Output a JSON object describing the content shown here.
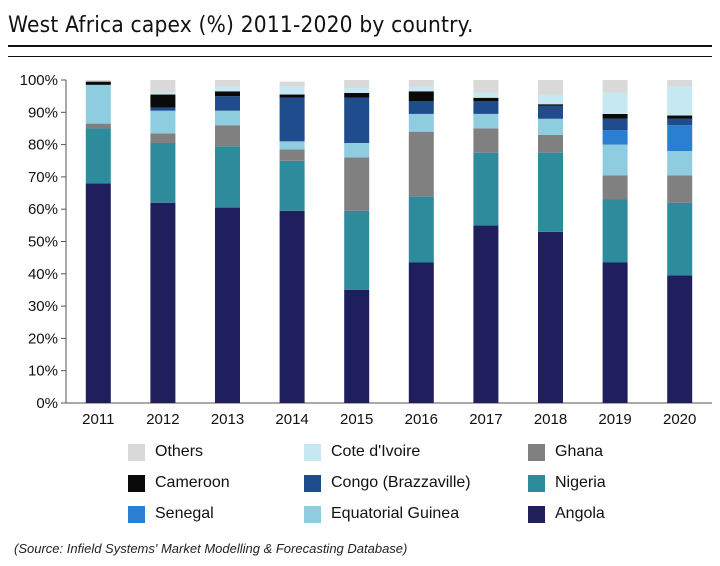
{
  "title": "West Africa capex (%) 2011-2020 by country.",
  "source": "(Source: Infield Systems' Market Modelling & Forecasting Database)",
  "colors": {
    "Angola": "#1f1f5e",
    "Nigeria": "#2e8b9c",
    "Ghana": "#808080",
    "Equatorial Guinea": "#8ecde0",
    "Senegal": "#2a7fd0",
    "Congo (Brazzaville)": "#1f4c8c",
    "Cameroon": "#0a0a0a",
    "Cote d'Ivoire": "#c5e8f2",
    "Others": "#d9d9d9"
  },
  "chart_data": {
    "type": "bar",
    "stacked": true,
    "title": "West Africa capex (%) 2011-2020 by country.",
    "categories": [
      "2011",
      "2012",
      "2013",
      "2014",
      "2015",
      "2016",
      "2017",
      "2018",
      "2019",
      "2020"
    ],
    "ylim": [
      0,
      100
    ],
    "yticks": [
      "0%",
      "10%",
      "20%",
      "30%",
      "40%",
      "50%",
      "60%",
      "70%",
      "80%",
      "90%",
      "100%"
    ],
    "legend_position": "bottom",
    "series": [
      {
        "name": "Angola",
        "values": [
          68,
          62,
          60.5,
          59.5,
          35,
          43.5,
          55,
          53,
          43.5,
          39.5
        ]
      },
      {
        "name": "Nigeria",
        "values": [
          17,
          18.5,
          19,
          15.5,
          24.5,
          20.5,
          22.5,
          24.5,
          19.5,
          22.5
        ]
      },
      {
        "name": "Ghana",
        "values": [
          1.5,
          3,
          6.5,
          3.5,
          16.5,
          20,
          7.5,
          5.5,
          7.5,
          8.5
        ]
      },
      {
        "name": "Equatorial Guinea",
        "values": [
          12,
          7,
          4.5,
          2.5,
          4.5,
          5.5,
          4.5,
          5,
          9.5,
          7.5
        ]
      },
      {
        "name": "Senegal",
        "values": [
          0,
          0,
          0,
          0,
          0,
          0,
          0,
          0,
          4.5,
          8
        ]
      },
      {
        "name": "Congo (Brazzaville)",
        "values": [
          0,
          1,
          4.5,
          13.5,
          14,
          4,
          4,
          4,
          3.5,
          2
        ]
      },
      {
        "name": "Cameroon",
        "values": [
          1,
          4,
          1.5,
          1,
          1.5,
          3,
          1,
          0.5,
          1.5,
          1
        ]
      },
      {
        "name": "Cote d'Ivoire",
        "values": [
          0,
          0.5,
          1.5,
          2.5,
          1.5,
          1.5,
          1.5,
          3,
          6.5,
          9
        ]
      },
      {
        "name": "Others",
        "values": [
          0.5,
          4,
          2,
          1.5,
          2.5,
          2,
          4,
          4.5,
          4,
          2
        ]
      }
    ]
  },
  "legend": {
    "rows": [
      [
        "Others",
        "Cote d'Ivoire",
        "Ghana"
      ],
      [
        "Cameroon",
        "Congo (Brazzaville)",
        "Nigeria"
      ],
      [
        "Senegal",
        "Equatorial Guinea",
        "Angola"
      ]
    ]
  }
}
